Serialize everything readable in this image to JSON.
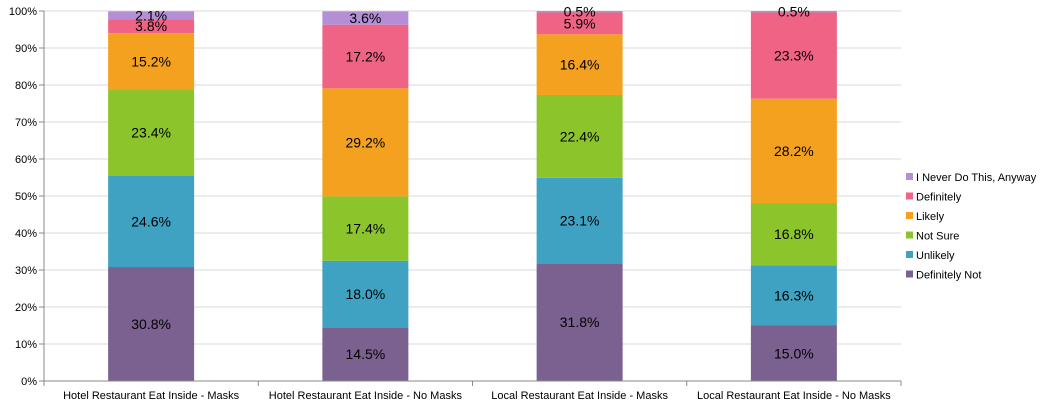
{
  "chart_data": {
    "type": "bar",
    "stacked": true,
    "percent_stacked": true,
    "categories": [
      "Hotel Restaurant Eat Inside - Masks",
      "Hotel Restaurant Eat Inside - No Masks",
      "Local Restaurant Eat Inside - Masks",
      "Local Restaurant Eat Inside - No Masks"
    ],
    "series": [
      {
        "name": "Definitely Not",
        "color": "#7b6190",
        "values": [
          30.8,
          14.5,
          31.8,
          15.0
        ],
        "labels": [
          "30.8%",
          "14.5%",
          "31.8%",
          "15.0%"
        ]
      },
      {
        "name": "Unlikely",
        "color": "#3fa2c2",
        "values": [
          24.6,
          18.0,
          23.1,
          16.3
        ],
        "labels": [
          "24.6%",
          "18.0%",
          "23.1%",
          "16.3%"
        ]
      },
      {
        "name": "Not Sure",
        "color": "#8cc42c",
        "values": [
          23.4,
          17.4,
          22.4,
          16.8
        ],
        "labels": [
          "23.4%",
          "17.4%",
          "22.4%",
          "16.8%"
        ]
      },
      {
        "name": "Likely",
        "color": "#f4a11f",
        "values": [
          15.2,
          29.2,
          16.4,
          28.2
        ],
        "labels": [
          "15.2%",
          "29.2%",
          "16.4%",
          "28.2%"
        ]
      },
      {
        "name": "Definitely",
        "color": "#ef6384",
        "values": [
          3.8,
          17.2,
          5.9,
          23.3
        ],
        "labels": [
          "3.8%",
          "17.2%",
          "5.9%",
          "23.3%"
        ]
      },
      {
        "name": "I Never Do This, Anyway",
        "color": "#b48fd6",
        "values": [
          2.1,
          3.6,
          0.5,
          0.5
        ],
        "labels": [
          "2.1%",
          "3.6%",
          "0.5%",
          "0.5%"
        ]
      }
    ],
    "y_ticks": [
      "0%",
      "10%",
      "20%",
      "30%",
      "40%",
      "50%",
      "60%",
      "70%",
      "80%",
      "90%",
      "100%"
    ],
    "ylim": [
      0,
      100
    ],
    "grid": true,
    "legend_position": "right",
    "title": "",
    "xlabel": "",
    "ylabel": ""
  }
}
